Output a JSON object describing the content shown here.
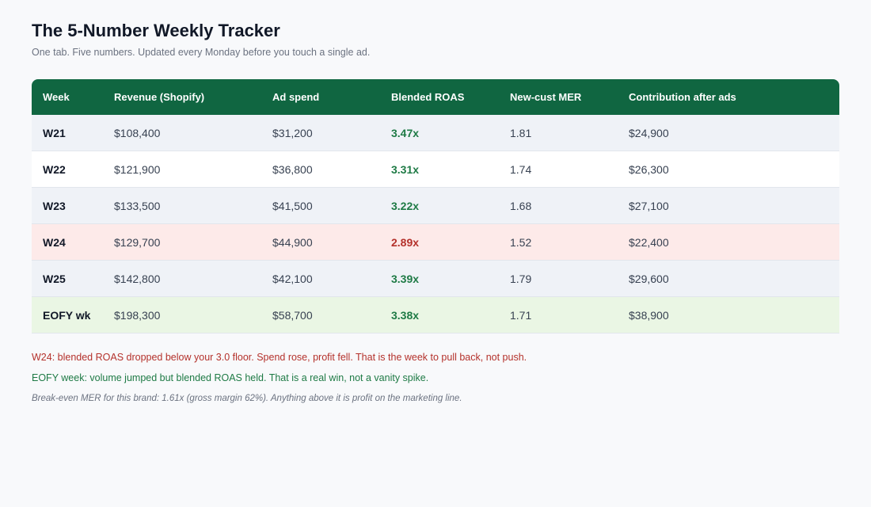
{
  "header": {
    "title": "The 5-Number Weekly Tracker",
    "subtitle": "One tab. Five numbers. Updated every Monday before you touch a single ad."
  },
  "table": {
    "columns": [
      "Week",
      "Revenue (Shopify)",
      "Ad spend",
      "Blended ROAS",
      "New-cust MER",
      "Contribution after ads"
    ],
    "rows": [
      {
        "week": "W21",
        "revenue": "$108,400",
        "ad_spend": "$31,200",
        "roas": "3.47x",
        "mer": "1.81",
        "contribution": "$24,900",
        "status": "normal"
      },
      {
        "week": "W22",
        "revenue": "$121,900",
        "ad_spend": "$36,800",
        "roas": "3.31x",
        "mer": "1.74",
        "contribution": "$26,300",
        "status": "normal"
      },
      {
        "week": "W23",
        "revenue": "$133,500",
        "ad_spend": "$41,500",
        "roas": "3.22x",
        "mer": "1.68",
        "contribution": "$27,100",
        "status": "normal"
      },
      {
        "week": "W24",
        "revenue": "$129,700",
        "ad_spend": "$44,900",
        "roas": "2.89x",
        "mer": "1.52",
        "contribution": "$22,400",
        "status": "bad"
      },
      {
        "week": "W25",
        "revenue": "$142,800",
        "ad_spend": "$42,100",
        "roas": "3.39x",
        "mer": "1.79",
        "contribution": "$29,600",
        "status": "normal"
      },
      {
        "week": "EOFY wk",
        "revenue": "$198,300",
        "ad_spend": "$58,700",
        "roas": "3.38x",
        "mer": "1.71",
        "contribution": "$38,900",
        "status": "good"
      }
    ]
  },
  "notes": {
    "warning": "W24: blended ROAS dropped below your 3.0 floor. Spend rose, profit fell. That is the week to pull back, not push.",
    "win": "EOFY week: volume jumped but blended ROAS held. That is a real win, not a vanity spike.",
    "footnote": "Break-even MER for this brand: 1.61x (gross margin 62%). Anything above it is profit on the marketing line."
  },
  "colors": {
    "header_bg": "#106641",
    "good_text": "#1e7a45",
    "bad_text": "#b4312b",
    "bad_row_bg": "#fdeae9",
    "good_row_bg": "#eaf6e4"
  }
}
